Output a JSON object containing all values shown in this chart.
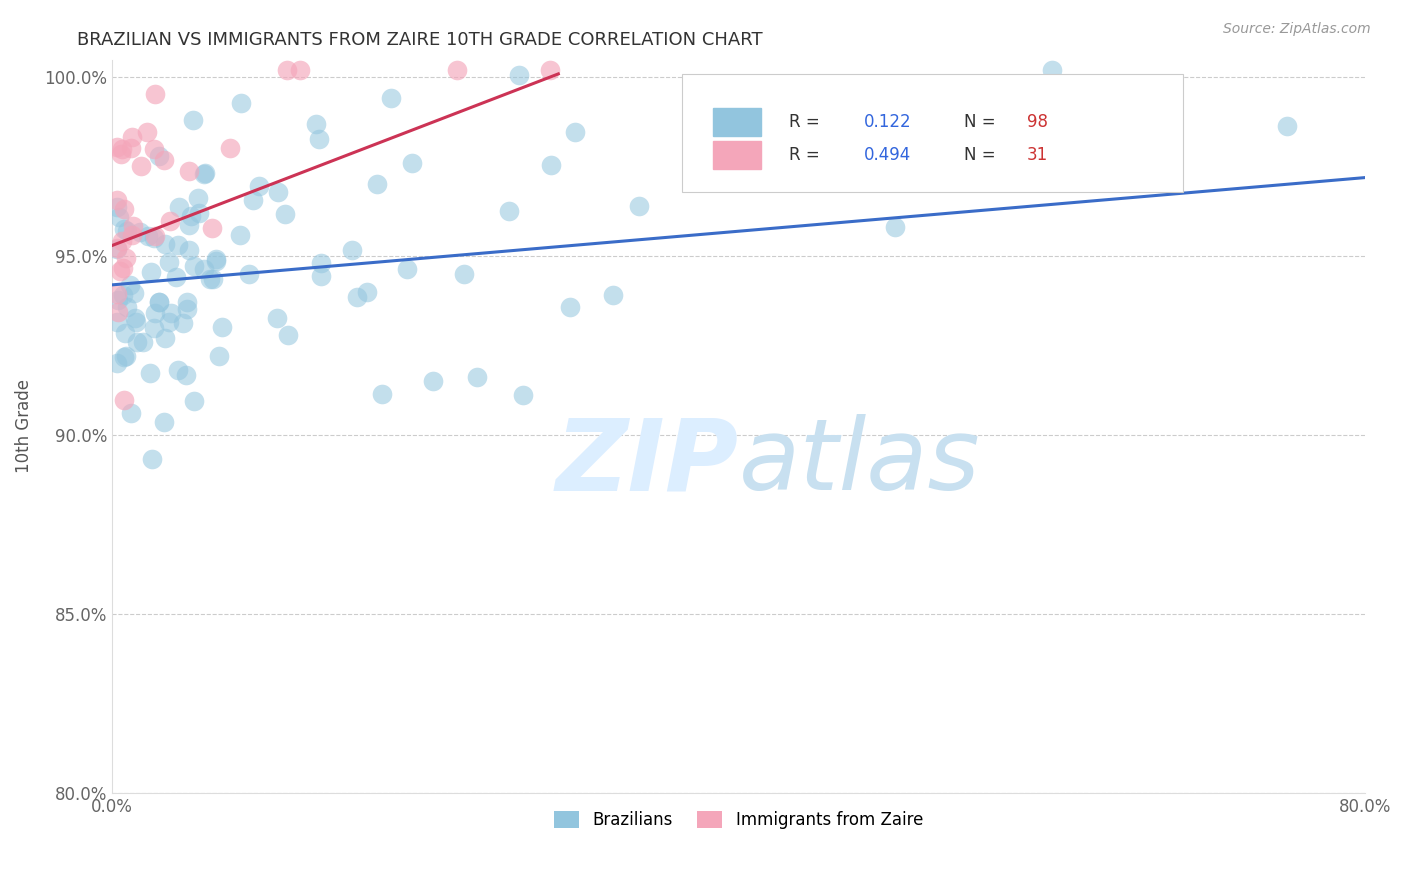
{
  "title": "BRAZILIAN VS IMMIGRANTS FROM ZAIRE 10TH GRADE CORRELATION CHART",
  "source_text": "Source: ZipAtlas.com",
  "ylabel": "10th Grade",
  "xlim": [
    0.0,
    0.8
  ],
  "ylim": [
    0.8,
    1.005
  ],
  "x_ticks": [
    0.0,
    0.1,
    0.2,
    0.3,
    0.4,
    0.5,
    0.6,
    0.7,
    0.8
  ],
  "x_tick_labels": [
    "0.0%",
    "",
    "",
    "",
    "",
    "",
    "",
    "",
    "80.0%"
  ],
  "y_ticks": [
    0.8,
    0.85,
    0.9,
    0.95,
    1.0
  ],
  "y_tick_labels": [
    "80.0%",
    "85.0%",
    "90.0%",
    "95.0%",
    "100.0%"
  ],
  "R_blue": 0.122,
  "N_blue": 98,
  "R_pink": 0.494,
  "N_pink": 31,
  "blue_color": "#92C5DE",
  "pink_color": "#F4A6BA",
  "blue_line_color": "#3A6CC8",
  "pink_line_color": "#CC3355",
  "legend_label_blue": "Brazilians",
  "legend_label_pink": "Immigrants from Zaire",
  "seed": 12345,
  "blue_line_x0": 0.0,
  "blue_line_x1": 0.8,
  "blue_line_y0": 0.942,
  "blue_line_y1": 0.972,
  "pink_line_x0": 0.0,
  "pink_line_x1": 0.285,
  "pink_line_y0": 0.953,
  "pink_line_y1": 1.001
}
